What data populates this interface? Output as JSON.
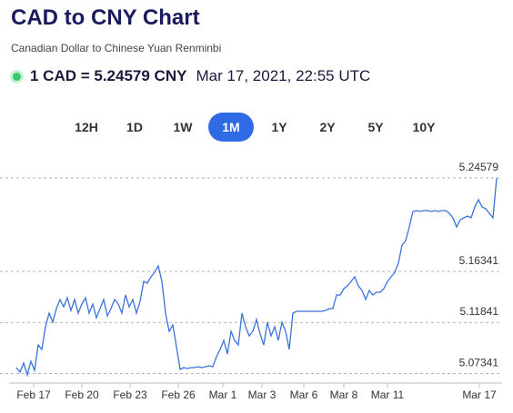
{
  "header": {
    "title": "CAD to CNY Chart",
    "subtitle": "Canadian Dollar to Chinese Yuan Renminbi",
    "rate": "1 CAD = 5.24579 CNY",
    "timestamp": "Mar 17, 2021, 22:55 UTC"
  },
  "range_buttons": {
    "labels": [
      "12H",
      "1D",
      "1W",
      "1M",
      "1Y",
      "2Y",
      "5Y",
      "10Y"
    ],
    "active": 3
  },
  "chart_data": {
    "type": "line",
    "color": "#3a72dc",
    "ylim": [
      5.065,
      5.2586
    ],
    "yticks": [
      5.07341,
      5.11841,
      5.16341,
      5.24579
    ],
    "xticks": [
      {
        "value": 4.75,
        "label": "Feb 17"
      },
      {
        "value": 18,
        "label": "Feb 20"
      },
      {
        "value": 31.25,
        "label": "Feb 23"
      },
      {
        "value": 44.5,
        "label": "Feb 26"
      },
      {
        "value": 56.75,
        "label": "Mar 1"
      },
      {
        "value": 67.5,
        "label": "Mar 3"
      },
      {
        "value": 79,
        "label": "Mar 6"
      },
      {
        "value": 90,
        "label": "Mar 8"
      },
      {
        "value": 102,
        "label": "Mar 11"
      },
      {
        "value": 127.25,
        "label": "Mar 17"
      }
    ],
    "grid": true,
    "values": [
      5.0786,
      5.0746,
      5.0826,
      5.0722,
      5.0842,
      5.0762,
      5.0986,
      5.0946,
      5.1146,
      5.1266,
      5.1186,
      5.1306,
      5.1386,
      5.1322,
      5.1402,
      5.129,
      5.1386,
      5.1266,
      5.1346,
      5.1402,
      5.1266,
      5.1346,
      5.1226,
      5.1306,
      5.1386,
      5.1242,
      5.1306,
      5.1386,
      5.1346,
      5.1266,
      5.1426,
      5.1322,
      5.1386,
      5.1266,
      5.137,
      5.1546,
      5.153,
      5.1586,
      5.1626,
      5.1682,
      5.1546,
      5.1266,
      5.1106,
      5.1162,
      5.097,
      5.077,
      5.0786,
      5.0778,
      5.0786,
      5.0786,
      5.0794,
      5.0786,
      5.0794,
      5.0802,
      5.0794,
      5.0882,
      5.0946,
      5.1026,
      5.0906,
      5.1106,
      5.1026,
      5.0986,
      5.1266,
      5.1146,
      5.1066,
      5.1106,
      5.121,
      5.1082,
      5.0986,
      5.1186,
      5.1066,
      5.1146,
      5.1026,
      5.1186,
      5.1106,
      5.0946,
      5.1266,
      5.1282,
      5.1282,
      5.1282,
      5.1282,
      5.1282,
      5.1282,
      5.1282,
      5.1282,
      5.129,
      5.1306,
      5.1306,
      5.1426,
      5.1426,
      5.1482,
      5.1506,
      5.1546,
      5.1586,
      5.1506,
      5.1466,
      5.1386,
      5.1466,
      5.1426,
      5.145,
      5.145,
      5.1482,
      5.1546,
      5.1586,
      5.1626,
      5.1706,
      5.1866,
      5.1906,
      5.2026,
      5.2162,
      5.217,
      5.2162,
      5.217,
      5.217,
      5.2162,
      5.217,
      5.2162,
      5.217,
      5.217,
      5.2146,
      5.2106,
      5.2026,
      5.209,
      5.2106,
      5.2122,
      5.2106,
      5.2202,
      5.2266,
      5.2202,
      5.2186,
      5.2146,
      5.2106,
      5.24579
    ]
  }
}
